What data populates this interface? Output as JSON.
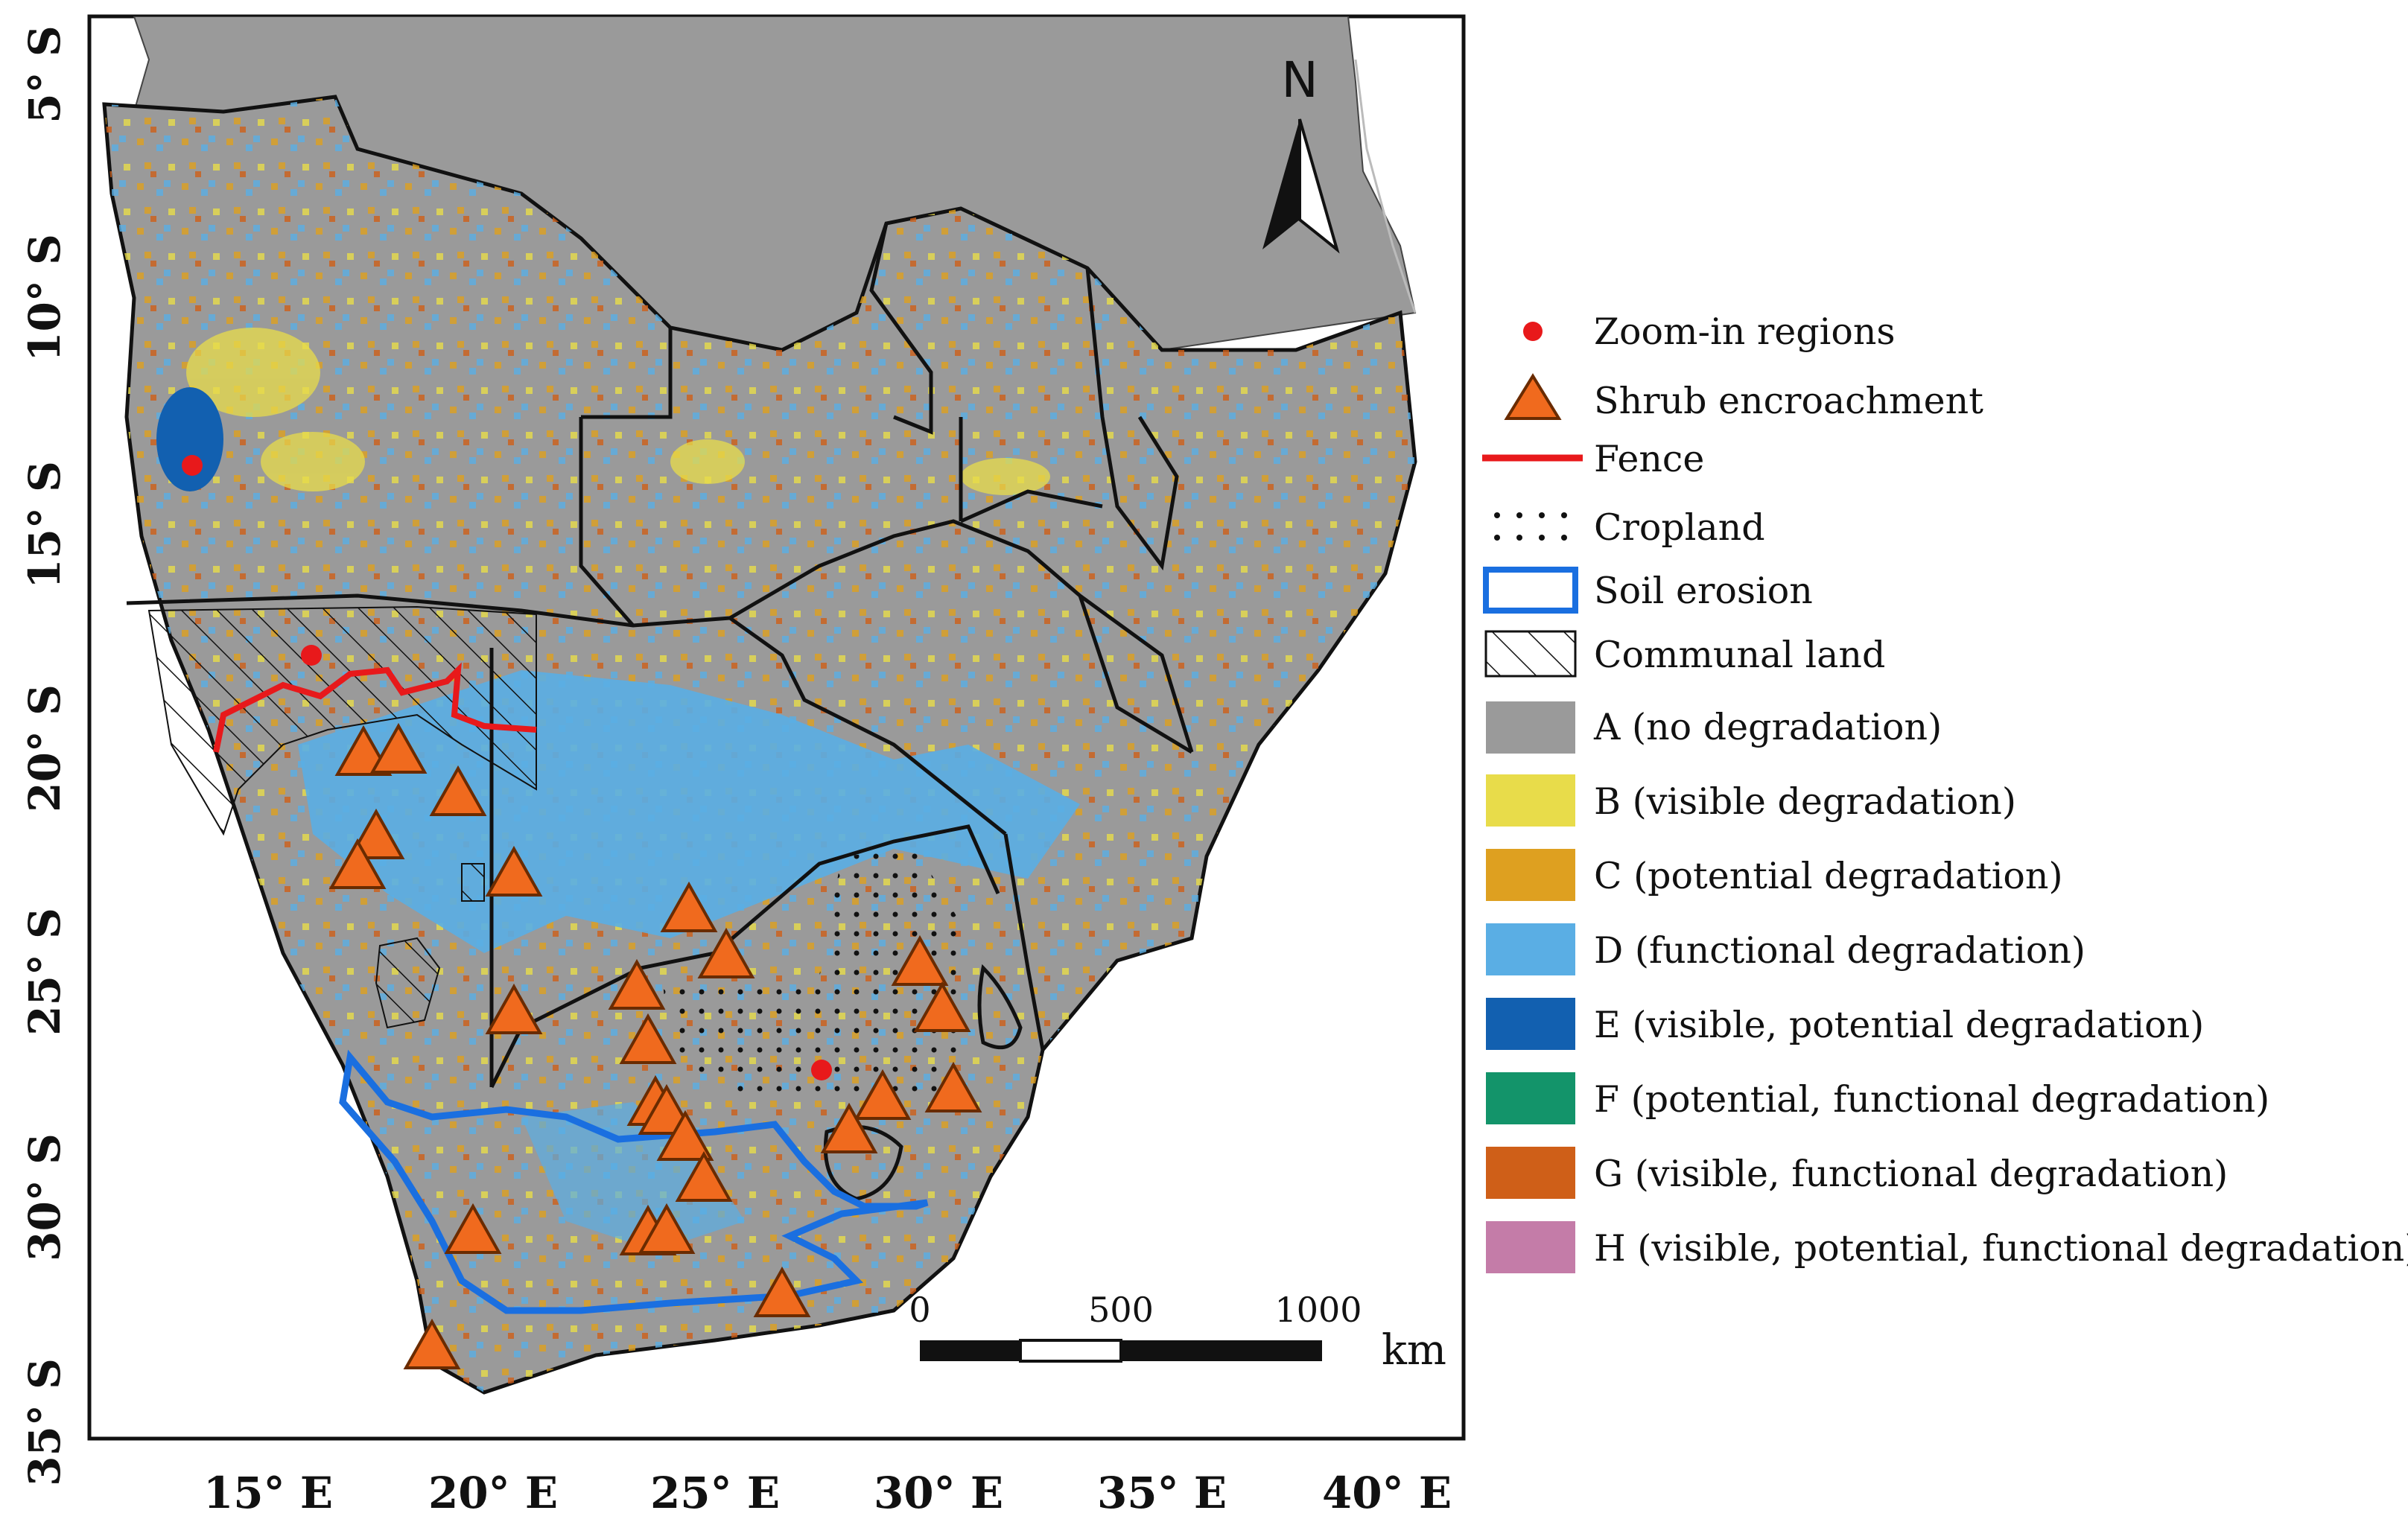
{
  "map": {
    "lat_ticks": [
      "5° S",
      "10° S",
      "15° S",
      "20° S",
      "25° S",
      "30° S",
      "35° S"
    ],
    "lon_ticks": [
      "15° E",
      "20° E",
      "25° E",
      "30° E",
      "35° E",
      "40° E"
    ],
    "north_label": "N",
    "scale": {
      "labels": [
        "0",
        "500",
        "1000"
      ],
      "unit": "km"
    }
  },
  "legend": {
    "items": [
      {
        "key": "zoom",
        "label": "Zoom-in regions",
        "color": "#e8191b"
      },
      {
        "key": "shrub",
        "label": "Shrub encroachment",
        "color": "#f06a1e"
      },
      {
        "key": "fence",
        "label": "Fence",
        "color": "#e8191b"
      },
      {
        "key": "cropland",
        "label": "Cropland",
        "color": "#111111"
      },
      {
        "key": "erosion",
        "label": "Soil erosion",
        "color": "#1a6fe0"
      },
      {
        "key": "communal",
        "label": "Communal land",
        "color": "#111111"
      },
      {
        "key": "A",
        "label": "A (no degradation)",
        "color": "#9a9a9a"
      },
      {
        "key": "B",
        "label": "B (visible degradation)",
        "color": "#e8dc4a"
      },
      {
        "key": "C",
        "label": "C (potential degradation)",
        "color": "#dea020"
      },
      {
        "key": "D",
        "label": "D (functional degradation)",
        "color": "#5aaee4"
      },
      {
        "key": "E",
        "label": "E (visible, potential degradation)",
        "color": "#1260b0"
      },
      {
        "key": "F",
        "label": "F (potential, functional degradation)",
        "color": "#13946a"
      },
      {
        "key": "G",
        "label": "G (visible, functional degradation)",
        "color": "#cf5f18"
      },
      {
        "key": "H",
        "label": "H (visible, potential, functional degradation)",
        "color": "#c47ca8"
      }
    ]
  }
}
